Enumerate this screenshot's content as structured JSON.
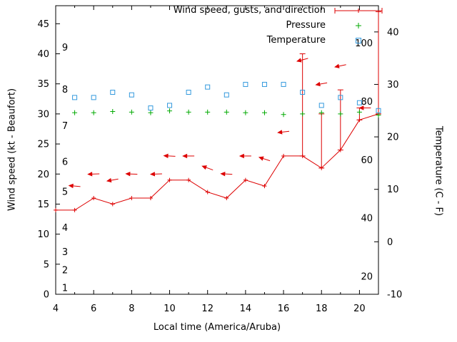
{
  "chart_data": {
    "type": "line",
    "title": "",
    "legend": {
      "position": "top-right",
      "entries": [
        "Wind speed, gusts, and direction",
        "Pressure",
        "Temperature"
      ]
    },
    "x_axis": {
      "label": "Local time (America/Aruba)",
      "range": [
        4,
        21
      ],
      "major_ticks": [
        4,
        6,
        8,
        10,
        12,
        14,
        16,
        18,
        20
      ]
    },
    "y_left": {
      "label": "Wind speed (kt - Beaufort)",
      "range": [
        0,
        48
      ],
      "ticks": [
        0,
        5,
        10,
        15,
        20,
        25,
        30,
        35,
        40,
        45
      ],
      "beaufort": [
        {
          "label": "1",
          "kt": 1
        },
        {
          "label": "2",
          "kt": 4
        },
        {
          "label": "3",
          "kt": 7
        },
        {
          "label": "4",
          "kt": 11
        },
        {
          "label": "5",
          "kt": 17
        },
        {
          "label": "6",
          "kt": 22
        },
        {
          "label": "7",
          "kt": 28
        },
        {
          "label": "8",
          "kt": 34
        },
        {
          "label": "9",
          "kt": 41
        }
      ]
    },
    "y_right": {
      "label": "Temperature (C - F)",
      "range": [
        -10,
        45
      ],
      "ticks_c": [
        -10,
        0,
        10,
        20,
        30,
        40
      ],
      "ticks_f": [
        20,
        40,
        60,
        80,
        100
      ]
    },
    "series": [
      {
        "name": "Wind speed, gusts, and direction",
        "type": "line-errorbars-arrows",
        "color": "#dd0000",
        "x": [
          4,
          5,
          6,
          7,
          8,
          9,
          10,
          11,
          12,
          13,
          14,
          15,
          16,
          17,
          18,
          19,
          20,
          21
        ],
        "speed_kt": [
          14,
          14,
          16,
          15,
          16,
          16,
          19,
          19,
          17,
          16,
          19,
          18,
          23,
          23,
          21,
          24,
          29,
          30
        ],
        "gust_kt": [
          null,
          null,
          null,
          null,
          null,
          null,
          null,
          null,
          null,
          null,
          null,
          null,
          null,
          40,
          30,
          34,
          31,
          47
        ],
        "arrows": [
          {
            "x": 5,
            "kt": 18,
            "angle": 185
          },
          {
            "x": 6,
            "kt": 20,
            "angle": 178
          },
          {
            "x": 7,
            "kt": 19,
            "angle": 170
          },
          {
            "x": 8,
            "kt": 20,
            "angle": 182
          },
          {
            "x": 9.3,
            "kt": 20,
            "angle": 178
          },
          {
            "x": 10,
            "kt": 23,
            "angle": 183
          },
          {
            "x": 11,
            "kt": 23,
            "angle": 180
          },
          {
            "x": 12,
            "kt": 21,
            "angle": 200
          },
          {
            "x": 13,
            "kt": 20,
            "angle": 183
          },
          {
            "x": 14,
            "kt": 23,
            "angle": 180
          },
          {
            "x": 15,
            "kt": 22.5,
            "angle": 198
          },
          {
            "x": 16,
            "kt": 27,
            "angle": 173
          },
          {
            "x": 17,
            "kt": 39,
            "angle": 165
          },
          {
            "x": 18,
            "kt": 35,
            "angle": 170
          },
          {
            "x": 19,
            "kt": 38,
            "angle": 168
          },
          {
            "x": 20.3,
            "kt": 31,
            "angle": 180
          }
        ]
      },
      {
        "name": "Pressure",
        "type": "scatter-plus",
        "color": "#00aa00",
        "x": [
          5,
          6,
          7,
          8,
          9,
          10,
          11,
          12,
          13,
          14,
          15,
          16,
          17,
          18,
          19,
          20,
          21
        ],
        "values_inhg": [
          30.2,
          30.2,
          30.4,
          30.3,
          30.2,
          30.5,
          30.3,
          30.3,
          30.3,
          30.2,
          30.2,
          29.9,
          30.0,
          30.2,
          30.0,
          30.3,
          29.8
        ]
      },
      {
        "name": "Temperature",
        "type": "scatter-open-square",
        "color": "#3399dd",
        "x": [
          5,
          6,
          7,
          8,
          9,
          10,
          11,
          12,
          13,
          14,
          15,
          16,
          17,
          18,
          19,
          20,
          21
        ],
        "values_c": [
          27.5,
          27.5,
          28.5,
          28,
          25.5,
          26,
          28.5,
          29.5,
          28,
          30,
          30,
          30,
          28.5,
          26,
          27.5,
          26.5,
          25
        ]
      }
    ]
  }
}
